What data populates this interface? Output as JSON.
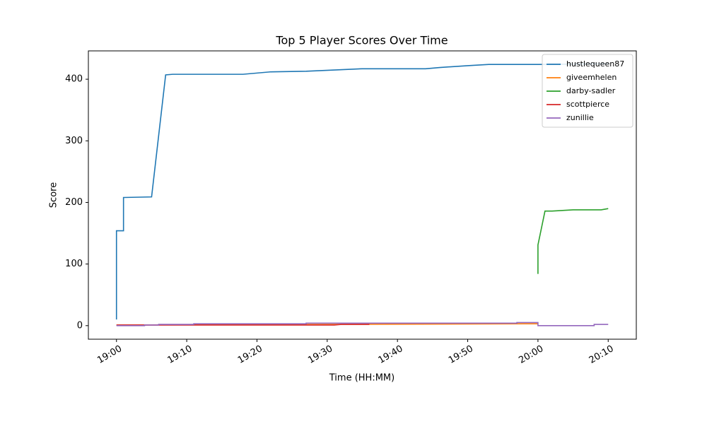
{
  "chart_data": {
    "type": "line",
    "title": "Top 5 Player Scores Over Time",
    "x_label": "Time (HH:MM)",
    "y_label": "Score",
    "xlim": [
      "18:56",
      "20:14"
    ],
    "xticks": [
      "19:00",
      "19:10",
      "19:20",
      "19:30",
      "19:40",
      "19:50",
      "20:00",
      "20:10"
    ],
    "ylim": [
      -22,
      446
    ],
    "yticks": [
      0,
      100,
      200,
      300,
      400
    ],
    "legend": "upper right",
    "grid": false,
    "series": [
      {
        "name": "hustlequeen87",
        "color": "#1f77b4",
        "x": [
          "19:00",
          "19:00",
          "19:01",
          "19:01",
          "19:05",
          "19:07",
          "19:08",
          "19:18",
          "19:22",
          "19:27",
          "19:31",
          "19:35",
          "19:44",
          "19:46",
          "19:50",
          "19:53",
          "20:00",
          "20:10"
        ],
        "values": [
          10,
          154,
          154,
          208,
          209,
          407,
          408,
          408,
          412,
          413,
          415,
          417,
          417,
          419,
          422,
          424,
          424,
          425
        ]
      },
      {
        "name": "giveemhelen",
        "color": "#ff7f0e",
        "x": [
          "19:00",
          "19:58",
          "20:00"
        ],
        "values": [
          1,
          3,
          3
        ]
      },
      {
        "name": "darby-sadler",
        "color": "#2ca02c",
        "x": [
          "20:00",
          "20:00",
          "20:01",
          "20:02",
          "20:05",
          "20:09",
          "20:10"
        ],
        "values": [
          84,
          131,
          186,
          186,
          188,
          188,
          190
        ]
      },
      {
        "name": "scottpierce",
        "color": "#d62728",
        "x": [
          "19:00",
          "19:31",
          "19:32",
          "19:36"
        ],
        "values": [
          1,
          1,
          2,
          2
        ]
      },
      {
        "name": "zunillie",
        "color": "#9467bd",
        "x": [
          "19:00",
          "19:04",
          "19:04",
          "19:06",
          "19:06",
          "19:11",
          "19:11",
          "19:27",
          "19:27",
          "19:57",
          "19:57",
          "20:00",
          "20:00",
          "20:08",
          "20:08",
          "20:10"
        ],
        "values": [
          0,
          0,
          1,
          1,
          2,
          2,
          3,
          3,
          4,
          4,
          5,
          5,
          0,
          0,
          2,
          2
        ]
      }
    ]
  }
}
